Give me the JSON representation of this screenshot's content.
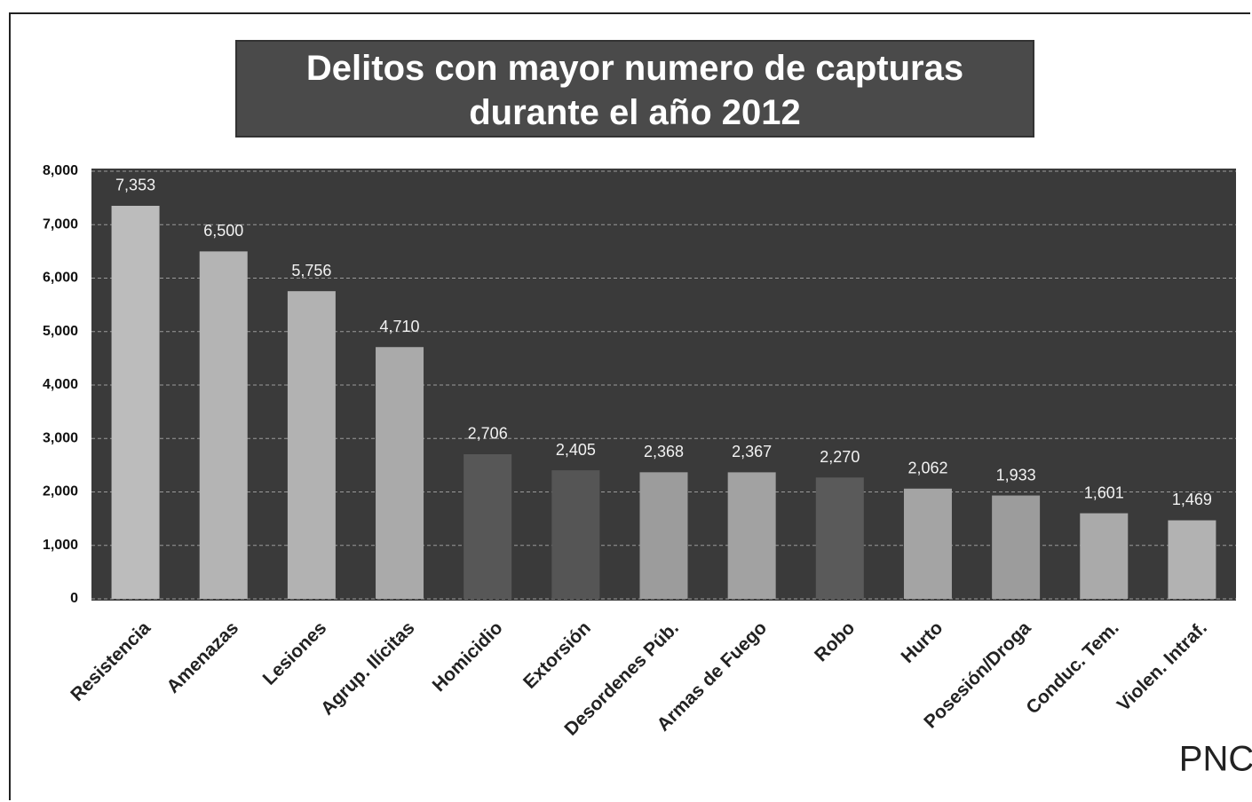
{
  "chart_data": {
    "type": "bar",
    "title": "Delitos con mayor numero de capturas\ndurante el año 2012",
    "categories": [
      "Resistencia",
      "Amenazas",
      "Lesiones",
      "Agrup. Ilícitas",
      "Homicidio",
      "Extorsión",
      "Desordenes Púb.",
      "Armas de Fuego",
      "Robo",
      "Hurto",
      "Posesión/Droga",
      "Conduc. Tem.",
      "Violen. Intraf."
    ],
    "values": [
      7353,
      6500,
      5756,
      4710,
      2706,
      2405,
      2368,
      2367,
      2270,
      2062,
      1933,
      1601,
      1469
    ],
    "value_labels": [
      "7,353",
      "6,500",
      "5,756",
      "4,710",
      "2,706",
      "2,405",
      "2,368",
      "2,367",
      "2,270",
      "2,062",
      "1,933",
      "1,601",
      "1,469"
    ],
    "colors": [
      "#bcbcbc",
      "#b4b4b4",
      "#b2b2b2",
      "#aaaaaa",
      "#575757",
      "#555555",
      "#9c9c9c",
      "#a2a2a2",
      "#5a5a5a",
      "#a4a4a4",
      "#9c9c9c",
      "#aaaaaa",
      "#b2b2b2"
    ],
    "ylim": [
      0,
      8000
    ],
    "yticks": [
      0,
      {
        "value": 1000,
        "label": "1,000"
      },
      {
        "value": 2000,
        "label": "2,000"
      },
      {
        "value": 3000,
        "label": "3,000"
      },
      {
        "value": 4000,
        "label": "4,000"
      },
      {
        "value": 5000,
        "label": "5,000"
      },
      {
        "value": 6000,
        "label": "6,000"
      },
      {
        "value": 7000,
        "label": "7,000"
      },
      {
        "value": 8000,
        "label": "8,000"
      }
    ],
    "grid": true,
    "annotation": "PNC"
  }
}
